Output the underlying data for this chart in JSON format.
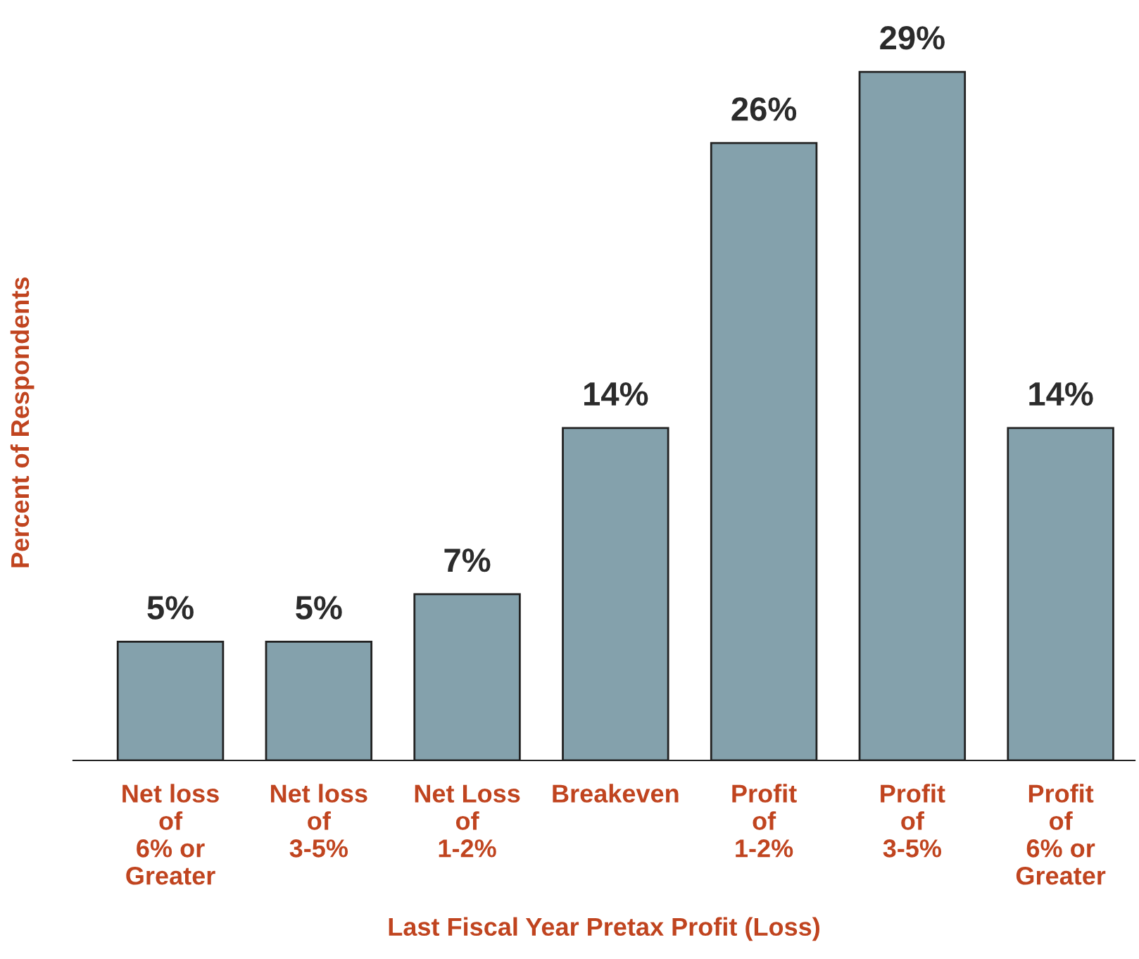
{
  "chart_data": {
    "type": "bar",
    "xlabel": "Last Fiscal Year Pretax Profit (Loss)",
    "ylabel": "Percent of Respondents",
    "categories": [
      "Net loss\nof\n6% or\nGreater",
      "Net loss\nof\n3-5%",
      "Net Loss\nof\n1-2%",
      "Breakeven",
      "Profit\nof\n1-2%",
      "Profit\nof\n3-5%",
      "Profit\nof\n6% or\nGreater"
    ],
    "values": [
      5,
      5,
      7,
      14,
      26,
      29,
      14
    ],
    "value_labels": [
      "5%",
      "5%",
      "7%",
      "14%",
      "26%",
      "29%",
      "14%"
    ],
    "color": "#84a1ac",
    "grid": false,
    "legend": false
  }
}
